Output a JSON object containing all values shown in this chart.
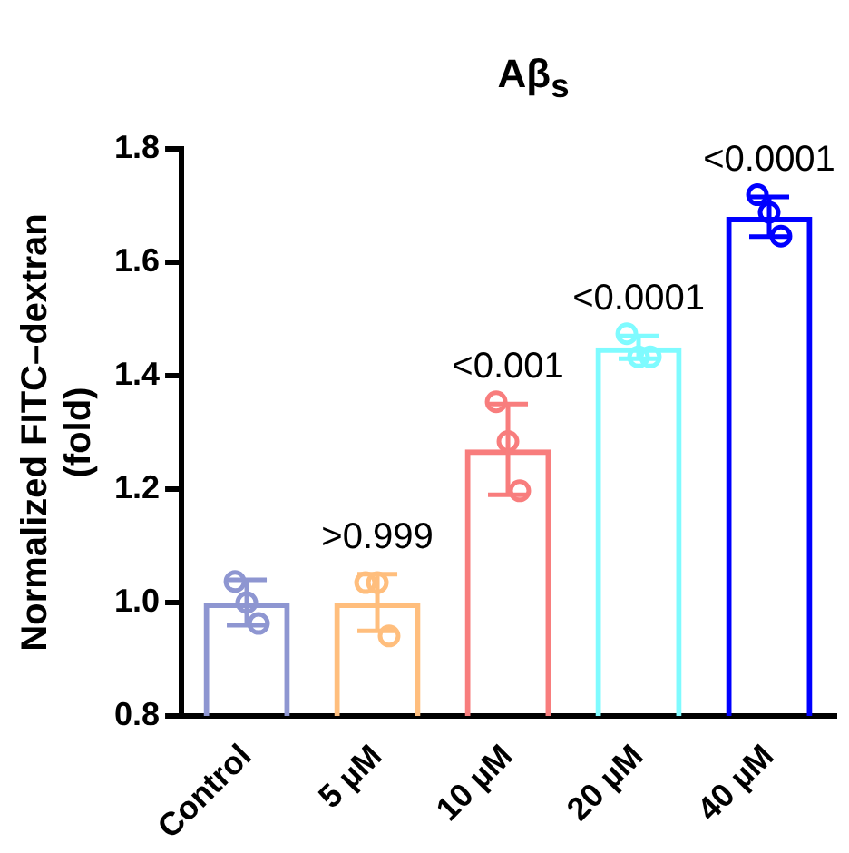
{
  "chart_data": {
    "type": "bar",
    "title": "Aβ$_{s}$",
    "ylabel": "Normalized FITC–dextran (fold)",
    "categories": [
      "Control",
      "5 µM",
      "10 µM",
      "20 µM",
      "40 µM"
    ],
    "ylim": [
      0.8,
      1.8
    ],
    "yticks": [
      0.8,
      {
        "value": 1.0,
        "label": "1.0"
      },
      1.2,
      1.4,
      1.6,
      1.8
    ],
    "grid": false,
    "legend": false,
    "marker": "circle",
    "series": [
      {
        "colors": [
          "#8e96d1",
          "#ffbe7d",
          "#f87d7d",
          "#7ffbff",
          "#0000ff"
        ],
        "values": [
          1.0,
          1.0,
          1.27,
          1.45,
          1.68
        ],
        "errors": [
          0.04,
          0.05,
          0.08,
          0.02,
          0.035
        ]
      },
      {
        "type": "scatter",
        "x": [
          "Control",
          "Control",
          "Control",
          "5 µM",
          "5 µM",
          "5 µM",
          "10 µM",
          "10 µM",
          "10 µM",
          "20 µM",
          "20 µM",
          "20 µM",
          "40 µM",
          "40 µM",
          "40 µM"
        ],
        "values": [
          1.037,
          1.0,
          0.963,
          1.035,
          1.035,
          0.941,
          1.354,
          1.284,
          1.197,
          1.474,
          1.433,
          1.433,
          1.719,
          1.688,
          1.646
        ],
        "colors": [
          "#8e96d1",
          "#8e96d1",
          "#8e96d1",
          "#ffbe7d",
          "#ffbe7d",
          "#ffbe7d",
          "#f87d7d",
          "#f87d7d",
          "#f87d7d",
          "#7ffbff",
          "#7ffbff",
          "#7ffbff",
          "#0000ff",
          "#0000ff",
          "#0000ff"
        ]
      }
    ],
    "annotations": [
      ">0.999",
      "<0.001",
      "<0.0001",
      "<0.0001"
    ]
  }
}
